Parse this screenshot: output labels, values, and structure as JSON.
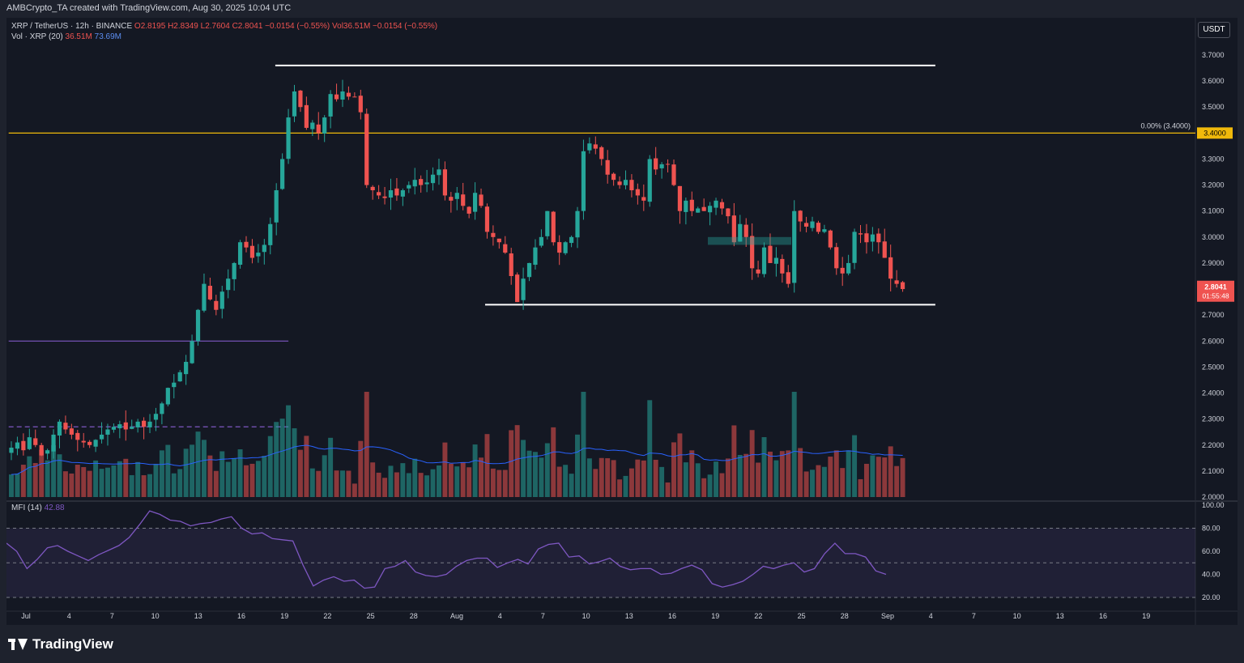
{
  "header": {
    "created_by": "AMBCrypto_TA created with TradingView.com, Aug 30, 2025 10:04 UTC"
  },
  "legend": {
    "symbol": "XRP / TetherUS · 12h · BINANCE",
    "ohlc": "O2.8195 H2.8349 L2.7604 C2.8041 −0.0154 (−0.55%)",
    "vol": "Vol36.51M −0.0154 (−0.55%)",
    "vol_ma_label": "Vol · XRP (20)",
    "vol_ma_a": "36.51M",
    "vol_ma_b": "73.69M",
    "mfi_label": "MFI (14)",
    "mfi_value": "42.88"
  },
  "currency_badge": "USDT",
  "fib_label": "0.00% (3.4000)",
  "fib_price": "3.4000",
  "last_price": "2.8041",
  "countdown": "01:55:48",
  "brand": "TradingView",
  "colors": {
    "up": "#26a69a",
    "down": "#ef5350",
    "fib": "#f0b90b",
    "purple": "#7e57c2",
    "vol_ma": "#2962ff",
    "mfi": "#7e57c2"
  },
  "chart_data": {
    "type": "candlestick",
    "price_axis": {
      "ticks": [
        "3.7000",
        "3.6000",
        "3.5000",
        "3.4000",
        "3.3000",
        "3.2000",
        "3.1000",
        "3.0000",
        "2.9000",
        "2.8000",
        "2.7000",
        "2.6000",
        "2.5000",
        "2.4000",
        "2.3000",
        "2.2000",
        "2.1000",
        "2.0000"
      ],
      "range": [
        2.0,
        3.72
      ]
    },
    "mfi_axis": {
      "ticks": [
        "100.00",
        "80.00",
        "60.00",
        "40.00",
        "20.00"
      ],
      "range": [
        0,
        100
      ],
      "band": [
        20,
        80
      ]
    },
    "time_axis": {
      "labels": [
        "Jul",
        "4",
        "7",
        "10",
        "13",
        "16",
        "19",
        "22",
        "25",
        "28",
        "Aug",
        "4",
        "7",
        "10",
        "13",
        "16",
        "19",
        "22",
        "25",
        "28",
        "Sep",
        "4",
        "7",
        "10",
        "13",
        "16",
        "19"
      ]
    },
    "levels": [
      {
        "name": "range-top",
        "price": 3.66,
        "start_index": 61,
        "end_index": 212,
        "color": "#ffffff"
      },
      {
        "name": "range-bottom",
        "price": 2.74,
        "start_index": 109,
        "end_index": 212,
        "color": "#ffffff"
      },
      {
        "name": "fib-0",
        "price": 3.4,
        "start_index": 0,
        "end_index": 272,
        "color": "#f0b90b"
      },
      {
        "name": "purple-level",
        "price": 2.6,
        "start_index": 0,
        "end_index": 64,
        "color": "#7e57c2"
      },
      {
        "name": "purple-dashed",
        "price": 2.27,
        "start_index": 0,
        "end_index": 64,
        "color": "#7e57c2"
      }
    ],
    "ohlc_closes": [
      2.19,
      2.21,
      2.18,
      2.23,
      2.2,
      2.16,
      2.18,
      2.24,
      2.29,
      2.26,
      2.24,
      2.22,
      2.21,
      2.2,
      2.22,
      2.24,
      2.26,
      2.27,
      2.28,
      2.26,
      2.27,
      2.29,
      2.27,
      2.29,
      2.32,
      2.36,
      2.42,
      2.44,
      2.48,
      2.52,
      2.6,
      2.72,
      2.82,
      2.76,
      2.72,
      2.79,
      2.84,
      2.9,
      2.98,
      2.96,
      2.92,
      2.94,
      2.97,
      3.05,
      3.18,
      3.3,
      3.46,
      3.56,
      3.5,
      3.42,
      3.44,
      3.4,
      3.46,
      3.55,
      3.53,
      3.56,
      3.54,
      3.54,
      3.48,
      3.2,
      3.18,
      3.16,
      3.15,
      3.18,
      3.16,
      3.18,
      3.2,
      3.22,
      3.2,
      3.21,
      3.24,
      3.26,
      3.16,
      3.14,
      3.17,
      3.12,
      3.09,
      3.17,
      3.12,
      3.02,
      3.0,
      2.98,
      2.94,
      2.85,
      2.75,
      2.84,
      2.9,
      2.96,
      3.0,
      3.1,
      2.98,
      2.94,
      2.98,
      3.0,
      3.1,
      3.33,
      3.36,
      3.34,
      3.3,
      3.24,
      3.22,
      3.2,
      3.22,
      3.18,
      3.16,
      3.14,
      3.3,
      3.26,
      3.28,
      3.28,
      3.2,
      3.1,
      3.14,
      3.1,
      3.11,
      3.1,
      3.12,
      3.14,
      3.11,
      3.08,
      2.98,
      3.05,
      3.0,
      2.88,
      2.86,
      2.96,
      2.9,
      2.92,
      2.86,
      2.82,
      3.1,
      3.06,
      3.04,
      3.06,
      3.02,
      3.03,
      2.96,
      2.88,
      2.86,
      2.9,
      3.02,
      3.01,
      2.98,
      3.01,
      2.98,
      2.92,
      2.84,
      2.82,
      2.8
    ],
    "ohlc_opens_offset_note": "",
    "mfi": [
      67,
      60,
      45,
      53,
      63,
      65,
      60,
      56,
      52,
      57,
      61,
      65,
      72,
      83,
      95,
      92,
      87,
      86,
      82,
      84,
      85,
      88,
      90,
      80,
      75,
      76,
      71,
      70,
      69,
      48,
      30,
      35,
      38,
      34,
      35,
      28,
      29,
      45,
      47,
      52,
      42,
      39,
      38,
      40,
      47,
      52,
      54,
      54,
      46,
      50,
      53,
      49,
      62,
      66,
      67,
      55,
      56,
      49,
      51,
      54,
      47,
      44,
      45,
      45,
      40,
      41,
      45,
      48,
      44,
      32,
      29,
      31,
      34,
      40,
      47,
      45,
      48,
      50,
      42,
      45,
      58,
      67,
      58,
      58,
      55,
      43,
      40
    ]
  }
}
